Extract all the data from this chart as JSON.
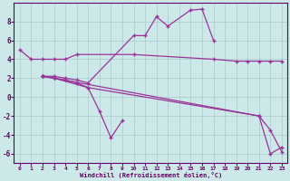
{
  "background_color": "#cce8e8",
  "grid_color": "#aacccc",
  "line_color": "#993399",
  "xlim": [
    -0.5,
    23.5
  ],
  "ylim": [
    -7,
    10
  ],
  "yticks": [
    -6,
    -4,
    -2,
    0,
    2,
    4,
    6,
    8
  ],
  "xticks": [
    0,
    1,
    2,
    3,
    4,
    5,
    6,
    7,
    8,
    9,
    10,
    11,
    12,
    13,
    14,
    15,
    16,
    17,
    18,
    19,
    20,
    21,
    22,
    23
  ],
  "xlabel": "Windchill (Refroidissement éolien,°C)",
  "line1_x": [
    0,
    1,
    2,
    3,
    4,
    5,
    10,
    17,
    19,
    20,
    21,
    22,
    23
  ],
  "line1_y": [
    5,
    4,
    4,
    4,
    4,
    4.5,
    4.5,
    4.0,
    3.8,
    3.8,
    3.8,
    3.8,
    3.8
  ],
  "line2_x": [
    2,
    3,
    4,
    5,
    6,
    10,
    11,
    12,
    13,
    15,
    16,
    17
  ],
  "line2_y": [
    2.2,
    2.2,
    2.0,
    1.8,
    1.5,
    6.5,
    6.5,
    8.5,
    7.5,
    9.2,
    9.3,
    6.0
  ],
  "line3_x": [
    2,
    3,
    4,
    5,
    6,
    7,
    8,
    9
  ],
  "line3_y": [
    2.2,
    2.0,
    1.8,
    1.5,
    1.0,
    -1.5,
    -4.3,
    -2.5
  ],
  "line4_x": [
    2,
    3,
    6,
    21,
    22,
    23
  ],
  "line4_y": [
    2.2,
    2.0,
    1.0,
    -2.0,
    -3.5,
    -5.8
  ],
  "line5_x": [
    2,
    3,
    21,
    22,
    23
  ],
  "line5_y": [
    2.2,
    2.0,
    -2.0,
    -6.0,
    -5.3
  ]
}
